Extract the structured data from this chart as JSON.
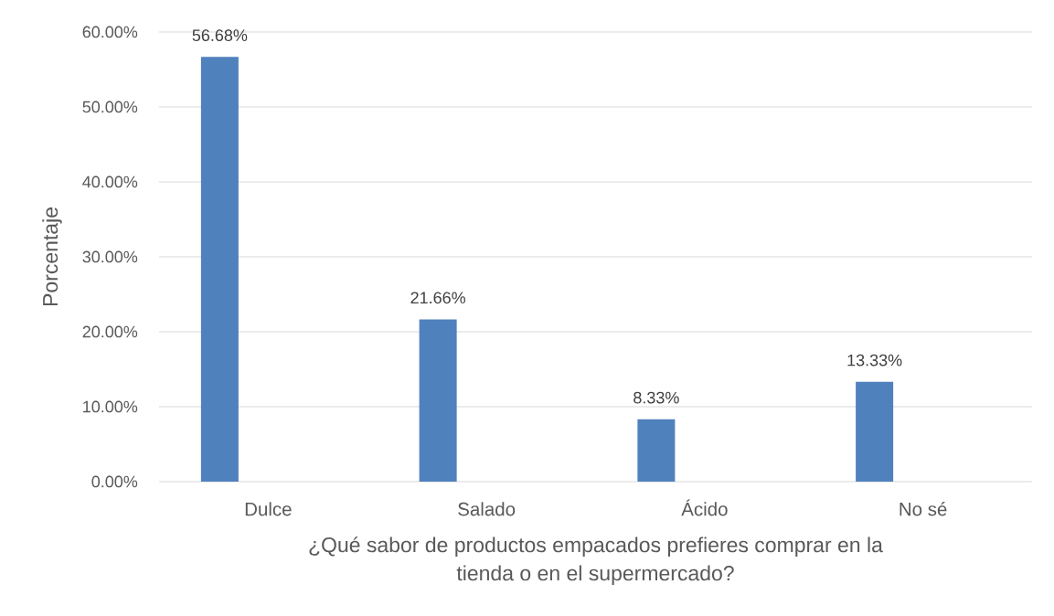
{
  "chart_data": {
    "type": "bar",
    "xlabel": "¿Qué sabor de productos empacados prefieres comprar en la tienda o en el supermercado?",
    "ylabel": "Porcentaje",
    "categories": [
      "Dulce",
      "Salado",
      "Ácido",
      "No sé"
    ],
    "values": [
      56.68,
      21.66,
      8.33,
      13.33
    ],
    "value_labels": [
      "56.68%",
      "21.66%",
      "8.33%",
      "13.33%"
    ],
    "color": "#4f81bd",
    "ylim": [
      0,
      60
    ],
    "yticks": [
      {
        "value": 0,
        "label": "0.00%"
      },
      {
        "value": 10,
        "label": "10.00%"
      },
      {
        "value": 20,
        "label": "20.00%"
      },
      {
        "value": 30,
        "label": "30.00%"
      },
      {
        "value": 40,
        "label": "40.00%"
      },
      {
        "value": 50,
        "label": "50.00%"
      },
      {
        "value": 60,
        "label": "60.00%"
      }
    ],
    "grid": "y"
  }
}
